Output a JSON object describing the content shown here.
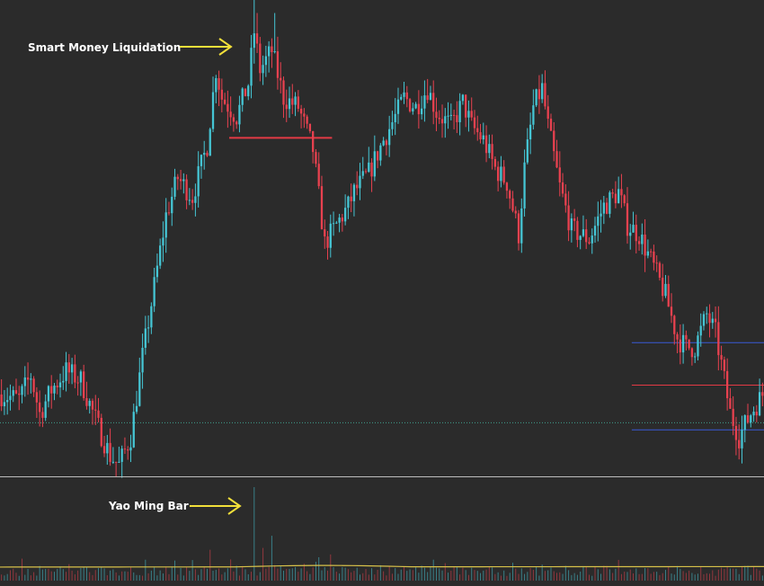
{
  "colors": {
    "background": "#2b2b2b",
    "bull": "#45c5d4",
    "bear": "#e8414f",
    "level_red": "#e33a45",
    "level_blue": "#3b5bd6",
    "separator": "#bdbdbd",
    "dotted_level": "#3f9e8c",
    "arrow": "#f2df3a",
    "volume_ma": "#d8c24a"
  },
  "annotations": {
    "liquidation_label": "Smart Money Liquidation",
    "yao_label": "Yao Ming Bar"
  },
  "chart_data": [
    {
      "type": "candlestick",
      "x": {
        "type": "bar-index",
        "range": [
          0,
          260
        ]
      },
      "y": {
        "range": [
          0,
          100
        ],
        "scale": "linear",
        "note": "no price axis shown"
      },
      "grid": false,
      "close_path": [
        [
          0,
          17
        ],
        [
          6,
          16
        ],
        [
          10,
          21
        ],
        [
          13,
          13
        ],
        [
          17,
          18
        ],
        [
          22,
          22
        ],
        [
          27,
          20
        ],
        [
          33,
          10
        ],
        [
          37,
          4
        ],
        [
          40,
          2
        ],
        [
          44,
          8
        ],
        [
          48,
          25
        ],
        [
          52,
          40
        ],
        [
          56,
          55
        ],
        [
          60,
          63
        ],
        [
          65,
          59
        ],
        [
          70,
          70
        ],
        [
          73,
          86
        ],
        [
          75,
          80
        ],
        [
          80,
          76
        ],
        [
          84,
          83
        ],
        [
          86,
          94
        ],
        [
          88,
          86
        ],
        [
          92,
          90
        ],
        [
          96,
          80
        ],
        [
          101,
          78
        ],
        [
          106,
          69
        ],
        [
          110,
          49
        ],
        [
          114,
          53
        ],
        [
          118,
          57
        ],
        [
          120,
          60
        ],
        [
          125,
          64
        ],
        [
          130,
          71
        ],
        [
          134,
          76
        ],
        [
          137,
          80
        ],
        [
          141,
          78
        ],
        [
          145,
          82
        ],
        [
          148,
          77
        ],
        [
          153,
          74
        ],
        [
          157,
          79
        ],
        [
          160,
          74
        ],
        [
          164,
          71
        ],
        [
          168,
          65
        ],
        [
          172,
          62
        ],
        [
          176,
          51
        ],
        [
          178,
          65
        ],
        [
          181,
          78
        ],
        [
          184,
          82
        ],
        [
          186,
          74
        ],
        [
          190,
          61
        ],
        [
          194,
          52
        ],
        [
          200,
          50
        ],
        [
          205,
          57
        ],
        [
          210,
          60
        ],
        [
          213,
          53
        ],
        [
          217,
          51
        ],
        [
          222,
          44
        ],
        [
          226,
          38
        ],
        [
          230,
          29
        ],
        [
          233,
          27
        ],
        [
          236,
          27
        ],
        [
          240,
          34
        ],
        [
          243,
          30
        ],
        [
          246,
          20
        ],
        [
          248,
          13
        ],
        [
          251,
          8
        ],
        [
          255,
          13
        ],
        [
          260,
          18
        ]
      ],
      "levels": [
        {
          "color": "red",
          "y": 71.5,
          "x_range": [
            78,
            113
          ]
        },
        {
          "color": "blue",
          "y": 28,
          "x_range": [
            215,
            260
          ]
        },
        {
          "color": "red",
          "y": 19,
          "x_range": [
            215,
            260
          ]
        },
        {
          "color": "blue",
          "y": 9.5,
          "x_range": [
            215,
            260
          ]
        },
        {
          "color": "green",
          "style": "dotted",
          "y": 11,
          "x_range": [
            0,
            260
          ]
        }
      ],
      "arrows": [
        {
          "label": "Smart Money Liquidation",
          "points_to": "top wick (bar 86-93)"
        }
      ]
    },
    {
      "type": "bar",
      "name": "volume",
      "spike_bars": [
        {
          "x": 86,
          "value": 100,
          "color": "bull"
        },
        {
          "x": 89,
          "value": 35,
          "color": "bear"
        },
        {
          "x": 92,
          "value": 48,
          "color": "bull"
        },
        {
          "x": 71,
          "value": 33,
          "color": "bear"
        },
        {
          "x": 65,
          "value": 22,
          "color": "bull"
        },
        {
          "x": 112,
          "value": 28,
          "color": "bear"
        },
        {
          "x": 108,
          "value": 25,
          "color": "bull"
        }
      ],
      "baseline_range": [
        5,
        16
      ],
      "moving_average_level": 17,
      "arrows": [
        {
          "label": "Yao Ming Bar",
          "points_to": "volume spike at bar 86"
        }
      ]
    }
  ]
}
